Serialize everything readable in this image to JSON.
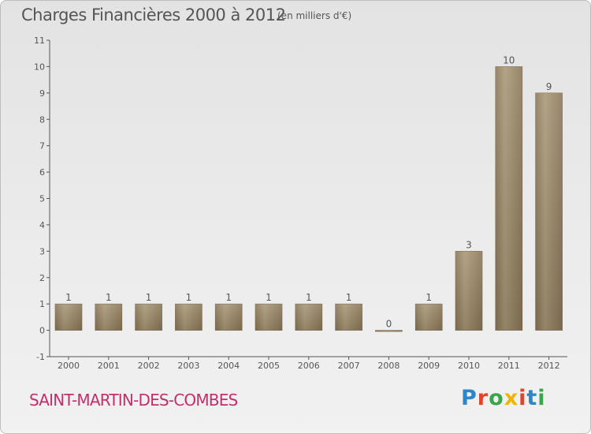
{
  "header": {
    "title": "Charges Financières 2000 à 2012",
    "unit": "(en milliers d'€)"
  },
  "footer": {
    "commune": "SAINT-MARTIN-DES-COMBES",
    "logo_text": "Proxiti",
    "logo_colors": [
      "#2e86c8",
      "#e0452c",
      "#3aa54a",
      "#f2b400",
      "#e0452c",
      "#2e86c8",
      "#3aa54a"
    ]
  },
  "colors": {
    "bar": "#8a7657",
    "bar_highlight": "#a89676",
    "axis": "#555555",
    "title": "#555555",
    "commune": "#c0306a"
  },
  "chart_data": {
    "type": "bar",
    "categories": [
      "2000",
      "2001",
      "2002",
      "2003",
      "2004",
      "2005",
      "2006",
      "2007",
      "2008",
      "2009",
      "2010",
      "2011",
      "2012"
    ],
    "values": [
      1,
      1,
      1,
      1,
      1,
      1,
      1,
      1,
      0,
      1,
      3,
      10,
      9
    ],
    "value_labels": [
      "1",
      "1",
      "1",
      "1",
      "1",
      "1",
      "1",
      "1",
      "0",
      "1",
      "3",
      "10",
      "9"
    ],
    "ytick_labels": [
      "-1",
      "0",
      "1",
      "2",
      "3",
      "4",
      "5",
      "6",
      "7",
      "8",
      "9",
      "10",
      "11"
    ],
    "ylim": [
      -1,
      11
    ],
    "title": "Charges Financières 2000 à 2012",
    "subtitle": "(en milliers d'€)",
    "xlabel": "",
    "ylabel": "",
    "grid": false,
    "legend": "none"
  }
}
